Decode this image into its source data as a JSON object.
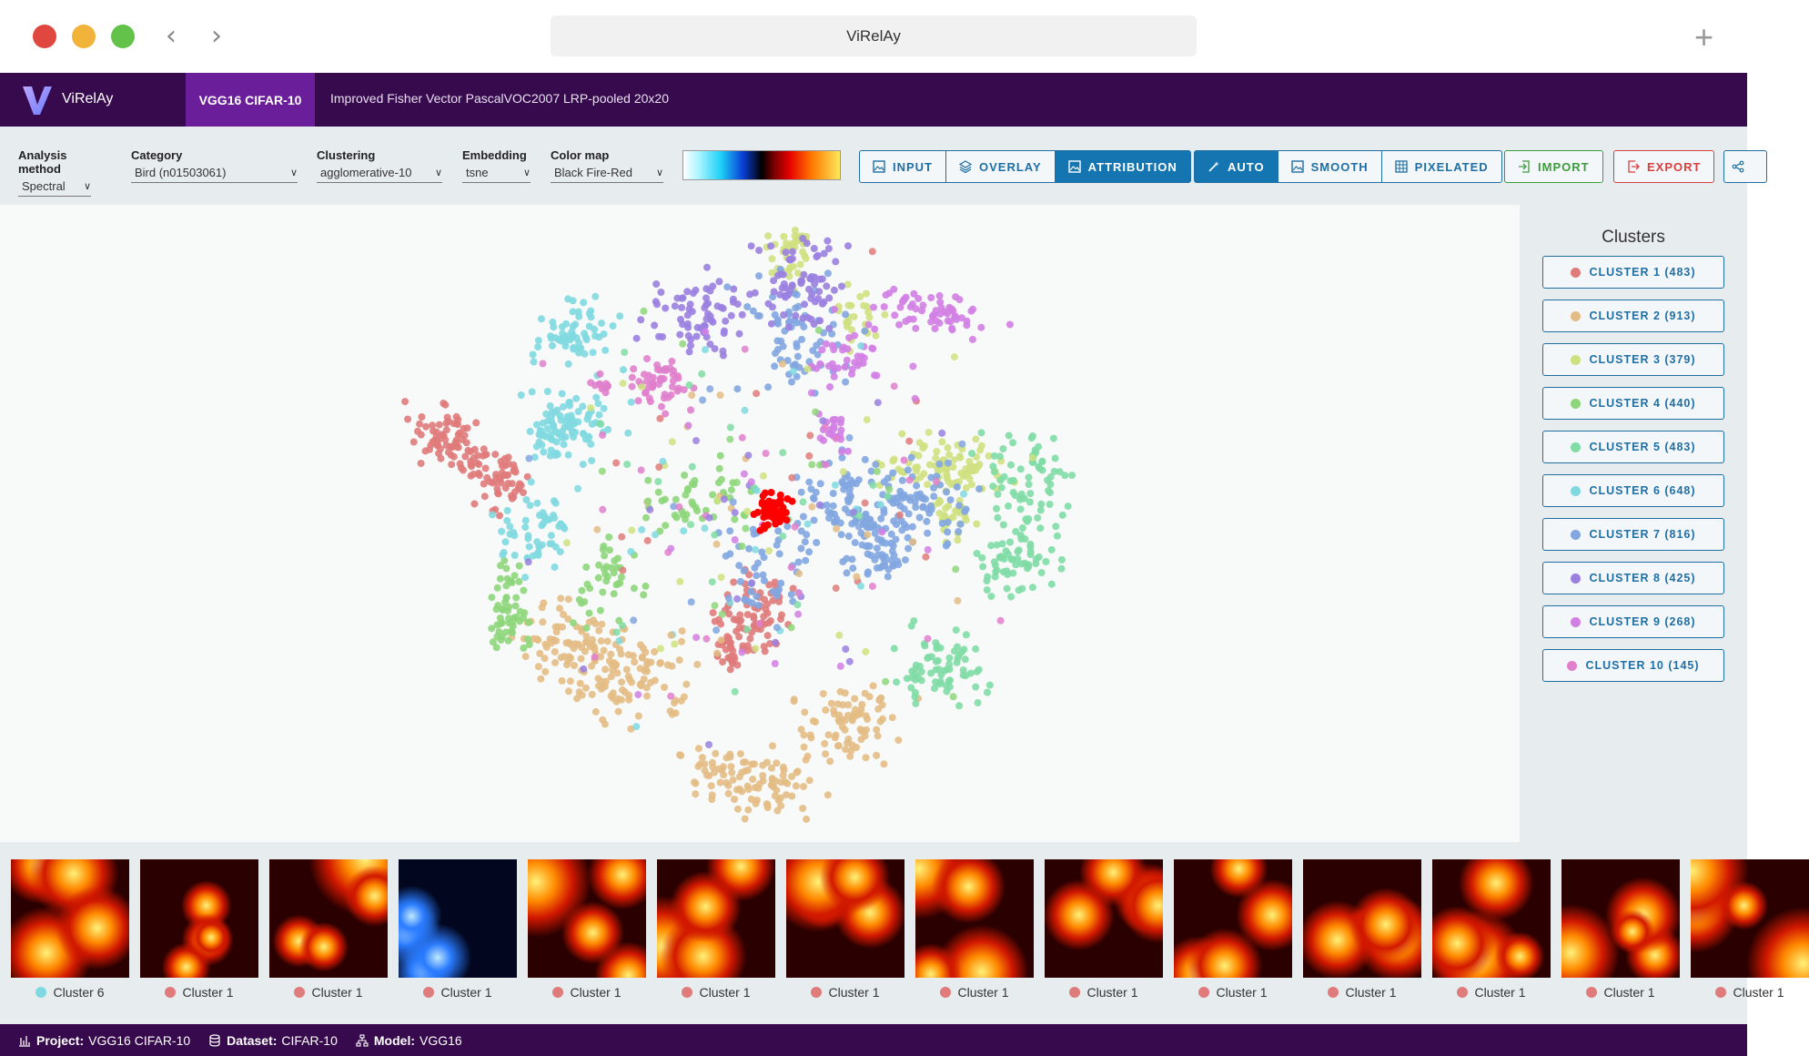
{
  "window": {
    "title": "ViRelAy"
  },
  "appbar": {
    "brand": "ViRelAy",
    "tabs": [
      {
        "label": "VGG16 CIFAR-10",
        "active": true
      },
      {
        "label": "Improved Fisher Vector PascalVOC2007 LRP-pooled 20x20",
        "active": false
      }
    ]
  },
  "toolbar": {
    "analysis_method": {
      "label": "Analysis method",
      "value": "Spectral"
    },
    "category": {
      "label": "Category",
      "value": "Bird (n01503061)"
    },
    "clustering": {
      "label": "Clustering",
      "value": "agglomerative-10"
    },
    "embedding": {
      "label": "Embedding",
      "value": "tsne"
    },
    "color_map": {
      "label": "Color map",
      "value": "Black Fire-Red"
    },
    "view_modes": [
      {
        "label": "INPUT",
        "icon": "image-icon",
        "active": false
      },
      {
        "label": "OVERLAY",
        "icon": "layers-icon",
        "active": false
      },
      {
        "label": "ATTRIBUTION",
        "icon": "image-icon",
        "active": true
      }
    ],
    "render_modes": [
      {
        "label": "AUTO",
        "icon": "magic-wand-icon",
        "active": true
      },
      {
        "label": "SMOOTH",
        "icon": "image-icon",
        "active": false
      },
      {
        "label": "PIXELATED",
        "icon": "grid-icon",
        "active": false
      }
    ],
    "import_label": "IMPORT",
    "export_label": "EXPORT",
    "colors": {
      "import": "#3e9b3e",
      "export": "#d84040",
      "accent": "#1575b0"
    }
  },
  "clusters_panel": {
    "title": "Clusters",
    "items": [
      {
        "label": "CLUSTER 1 (483)",
        "color": "#e07b7b"
      },
      {
        "label": "CLUSTER 2 (913)",
        "color": "#e3bc85"
      },
      {
        "label": "CLUSTER 3 (379)",
        "color": "#cfe07f"
      },
      {
        "label": "CLUSTER 4 (440)",
        "color": "#8ed67b"
      },
      {
        "label": "CLUSTER 5 (483)",
        "color": "#7fdca5"
      },
      {
        "label": "CLUSTER 6 (648)",
        "color": "#7fd9e0"
      },
      {
        "label": "CLUSTER 7 (816)",
        "color": "#82a6e0"
      },
      {
        "label": "CLUSTER 8 (425)",
        "color": "#9a7fe0"
      },
      {
        "label": "CLUSTER 9 (268)",
        "color": "#d17fe3"
      },
      {
        "label": "CLUSTER 10 (145)",
        "color": "#e07fcc"
      }
    ],
    "selected_color": "#ff0000"
  },
  "thumbnails": [
    {
      "label": "Cluster 6",
      "color": "#7fd9e0",
      "scheme": "fire"
    },
    {
      "label": "Cluster 1",
      "color": "#e07b7b",
      "scheme": "fire"
    },
    {
      "label": "Cluster 1",
      "color": "#e07b7b",
      "scheme": "fire"
    },
    {
      "label": "Cluster 1",
      "color": "#e07b7b",
      "scheme": "ice"
    },
    {
      "label": "Cluster 1",
      "color": "#e07b7b",
      "scheme": "fire"
    },
    {
      "label": "Cluster 1",
      "color": "#e07b7b",
      "scheme": "fire"
    },
    {
      "label": "Cluster 1",
      "color": "#e07b7b",
      "scheme": "fire"
    },
    {
      "label": "Cluster 1",
      "color": "#e07b7b",
      "scheme": "fire"
    },
    {
      "label": "Cluster 1",
      "color": "#e07b7b",
      "scheme": "fire"
    },
    {
      "label": "Cluster 1",
      "color": "#e07b7b",
      "scheme": "fire"
    },
    {
      "label": "Cluster 1",
      "color": "#e07b7b",
      "scheme": "fire"
    },
    {
      "label": "Cluster 1",
      "color": "#e07b7b",
      "scheme": "fire"
    },
    {
      "label": "Cluster 1",
      "color": "#e07b7b",
      "scheme": "fire"
    },
    {
      "label": "Cluster 1",
      "color": "#e07b7b",
      "scheme": "fire"
    }
  ],
  "statusbar": {
    "project_label": "Project:",
    "project": "VGG16 CIFAR-10",
    "dataset_label": "Dataset:",
    "dataset": "CIFAR-10",
    "model_label": "Model:",
    "model": "VGG16"
  }
}
